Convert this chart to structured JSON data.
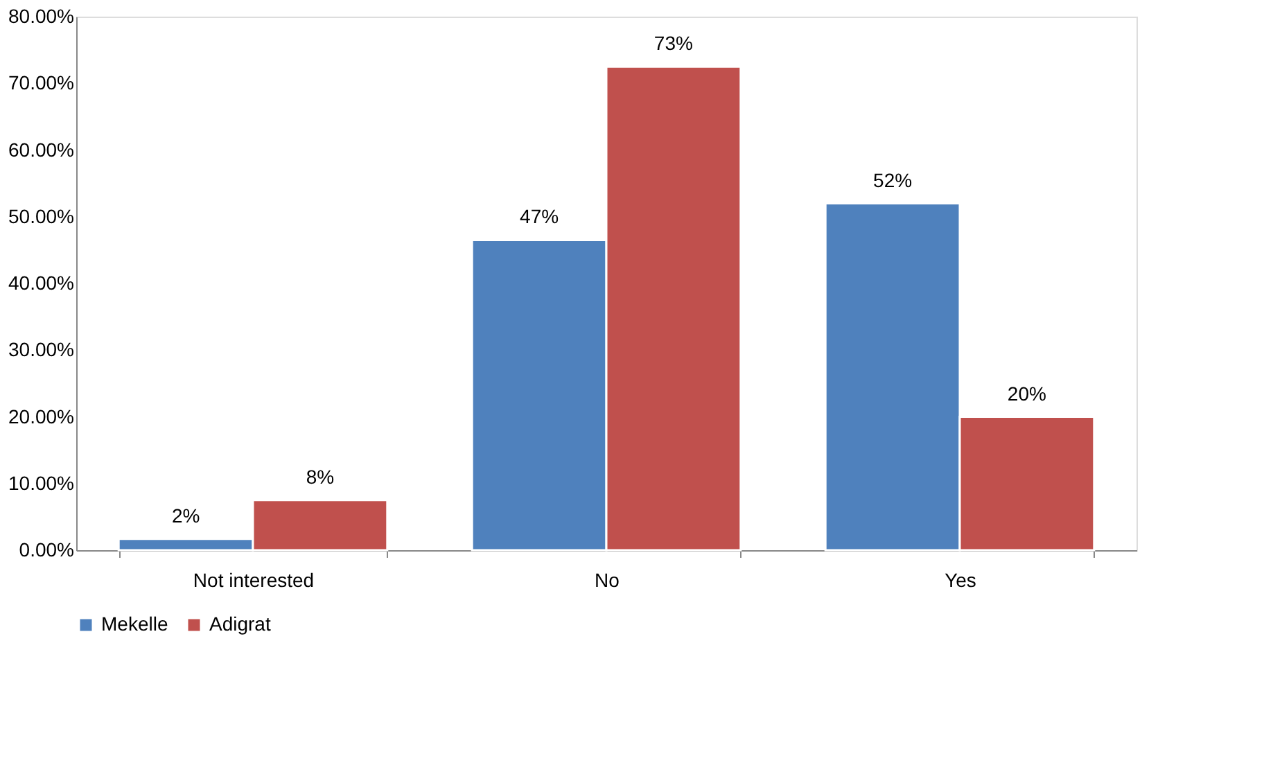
{
  "chart_data": {
    "type": "bar",
    "categories": [
      "Not interested",
      "No",
      "Yes"
    ],
    "series": [
      {
        "name": "Mekelle",
        "color": "#4f81bd",
        "values": [
          1.7,
          46.5,
          52
        ],
        "value_labels": [
          "2%",
          "47%",
          "52%"
        ]
      },
      {
        "name": "Adigrat",
        "color": "#c0504d",
        "values": [
          7.5,
          72.5,
          20
        ],
        "value_labels": [
          "8%",
          "73%",
          "20%"
        ]
      }
    ],
    "ylim": [
      0,
      80
    ],
    "yticks": [
      {
        "value": 0,
        "label": "0.00%"
      },
      {
        "value": 10,
        "label": "10.00%"
      },
      {
        "value": 20,
        "label": "20.00%"
      },
      {
        "value": 30,
        "label": "30.00%"
      },
      {
        "value": 40,
        "label": "40.00%"
      },
      {
        "value": 50,
        "label": "50.00%"
      },
      {
        "value": 60,
        "label": "60.00%"
      },
      {
        "value": 70,
        "label": "70.00%"
      },
      {
        "value": 80,
        "label": "80.00%"
      }
    ],
    "grid": false,
    "legend": "bottom"
  }
}
